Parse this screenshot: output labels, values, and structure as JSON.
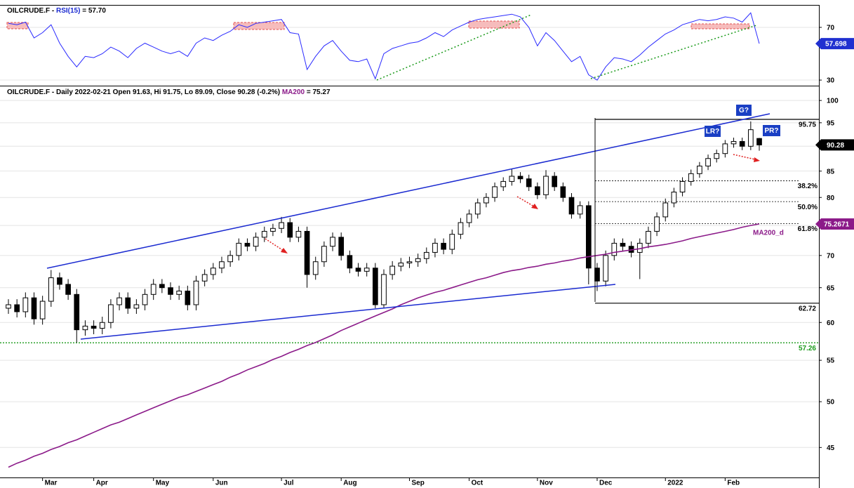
{
  "chart_data": [
    {
      "type": "candlestick",
      "title_parts": [
        "OILCRUDE.F - Daily 2022-02-21 Open 91.63, Hi 91.75, Lo 89.09, Close 90.28 (-0.2%) ",
        "MA200",
        " = 75.27"
      ],
      "categories": [
        null,
        null,
        null,
        null,
        "Mar",
        null,
        null,
        null,
        null,
        null,
        "Apr",
        null,
        null,
        null,
        null,
        null,
        null,
        "May",
        null,
        null,
        null,
        null,
        null,
        null,
        "Jun",
        null,
        null,
        null,
        null,
        null,
        null,
        null,
        "Jul",
        null,
        null,
        null,
        null,
        null,
        null,
        "Aug",
        null,
        null,
        null,
        null,
        null,
        null,
        null,
        "Sep",
        null,
        null,
        null,
        null,
        null,
        null,
        "Oct",
        null,
        null,
        null,
        null,
        null,
        null,
        null,
        "Nov",
        null,
        null,
        null,
        null,
        null,
        null,
        "Dec",
        null,
        null,
        null,
        null,
        null,
        null,
        null,
        "2022",
        null,
        null,
        null,
        null,
        null,
        null,
        "Feb",
        null,
        null,
        null,
        null
      ],
      "open": [
        62,
        62.5,
        61.5,
        63.5,
        60.5,
        63,
        66.5,
        65.5,
        64,
        59,
        59.5,
        59.2,
        60,
        62.5,
        63.5,
        62,
        62.5,
        64,
        65.5,
        65,
        64,
        64.5,
        62.5,
        66,
        67,
        68,
        69,
        70,
        72,
        71.5,
        73,
        74,
        74.5,
        75.5,
        73,
        74,
        67,
        69,
        71.5,
        73,
        70,
        68,
        67.5,
        68,
        62.5,
        67,
        68.3,
        68.8,
        69,
        69.5,
        70.5,
        72,
        71,
        73.5,
        75.5,
        77,
        79,
        80,
        82,
        83,
        84,
        83.5,
        82,
        80.5,
        84,
        82,
        80,
        77,
        78.5,
        68,
        66,
        70,
        72,
        71.5,
        70.5,
        72,
        74,
        76.5,
        79,
        81,
        83,
        84.5,
        86,
        87.5,
        88.5,
        90.5,
        91,
        90,
        91.63
      ],
      "high": [
        63.3,
        63.3,
        64.3,
        64.3,
        63.8,
        67.7,
        67.3,
        66.3,
        64.8,
        60.3,
        60.3,
        60.8,
        63.3,
        64.3,
        64.3,
        63.3,
        64.8,
        66.3,
        66.3,
        65.8,
        65.3,
        65.3,
        66.8,
        67.8,
        68.8,
        69.8,
        70.8,
        72.8,
        72.8,
        73.8,
        74.8,
        75.3,
        76.5,
        76.3,
        74.8,
        74.8,
        69.8,
        72.3,
        73.8,
        73.8,
        70.8,
        68.8,
        68.8,
        68.8,
        67.8,
        69.1,
        69.6,
        69.8,
        70.3,
        71.3,
        72.8,
        72.8,
        74.3,
        76.3,
        77.8,
        79.8,
        80.8,
        82.8,
        83.8,
        85.5,
        84.8,
        84.3,
        82.8,
        85.2,
        84.8,
        82.8,
        80.8,
        79.3,
        79.3,
        68.8,
        70.8,
        72.8,
        72.8,
        72.3,
        72.8,
        74.8,
        77.3,
        79.8,
        81.8,
        83.8,
        85.3,
        86.8,
        88.3,
        89.3,
        91.3,
        91.8,
        91.8,
        95.3,
        91.75
      ],
      "low": [
        61.2,
        60.7,
        60.7,
        59.7,
        59.7,
        62.2,
        64.7,
        63.2,
        57.3,
        58.2,
        58.4,
        58.4,
        59.2,
        61.7,
        61.2,
        61.2,
        61.7,
        63.2,
        64.2,
        63.2,
        63.2,
        61.7,
        61.7,
        65.2,
        66.2,
        67.2,
        68.2,
        69.2,
        70.7,
        70.7,
        72.2,
        73.2,
        73.7,
        72.2,
        72.2,
        65,
        66.2,
        68.2,
        70.7,
        69.2,
        67.2,
        66.7,
        66.7,
        62,
        62,
        66.2,
        67.5,
        68,
        68.2,
        68.7,
        69.7,
        70.2,
        70.2,
        72.7,
        74.7,
        76.2,
        78.2,
        79.2,
        81.2,
        82.2,
        82.7,
        81.2,
        79.7,
        79.7,
        81.2,
        79.2,
        76.2,
        76.2,
        65.5,
        64.5,
        65.2,
        69.2,
        70.7,
        69.7,
        66.3,
        71.2,
        73.2,
        75.7,
        78.2,
        80.2,
        82.2,
        83.7,
        85.2,
        86.7,
        87.7,
        89.7,
        89.2,
        89.2,
        89.09
      ],
      "close": [
        62.5,
        61.5,
        63.5,
        60.5,
        63,
        66.5,
        65.5,
        64,
        59,
        59.5,
        59.2,
        60,
        62.5,
        63.5,
        62,
        62.5,
        64,
        65.5,
        65,
        64,
        64.5,
        62.5,
        66,
        67,
        68,
        69,
        70,
        72,
        71.5,
        73,
        74,
        74.5,
        75.5,
        73,
        74,
        67,
        69,
        71.5,
        73,
        70,
        68,
        67.5,
        68,
        62.5,
        67,
        68.3,
        68.8,
        69,
        69.5,
        70.5,
        72,
        71,
        73.5,
        75.5,
        77,
        79,
        80,
        82,
        83,
        84,
        83.5,
        82,
        80.5,
        84,
        82,
        80,
        77,
        78.5,
        68,
        66,
        70,
        72,
        71.5,
        70.5,
        72,
        74,
        76.5,
        79,
        81,
        83,
        84.5,
        86,
        87.5,
        88.5,
        90.5,
        91,
        90,
        93.5,
        90.28
      ],
      "up_color": "#ffffff",
      "down_color": "#000000",
      "series": [
        {
          "name": "MA200_d",
          "color": "#8b1a89",
          "values": [
            43.0,
            43.4,
            43.7,
            44.1,
            44.4,
            44.8,
            45.1,
            45.5,
            45.8,
            46.2,
            46.6,
            47.0,
            47.4,
            47.7,
            48.1,
            48.5,
            48.9,
            49.3,
            49.7,
            50.1,
            50.5,
            50.8,
            51.2,
            51.6,
            52.0,
            52.4,
            52.9,
            53.3,
            53.8,
            54.2,
            54.6,
            55.1,
            55.5,
            56.0,
            56.4,
            56.9,
            57.3,
            57.8,
            58.3,
            58.9,
            59.4,
            59.9,
            60.4,
            60.9,
            61.4,
            61.9,
            62.5,
            63.0,
            63.5,
            63.9,
            64.3,
            64.6,
            65.0,
            65.4,
            65.8,
            66.2,
            66.5,
            66.9,
            67.3,
            67.6,
            67.8,
            68.1,
            68.3,
            68.6,
            68.8,
            69.1,
            69.3,
            69.6,
            69.8,
            70.0,
            70.2,
            70.5,
            70.7,
            70.9,
            71.1,
            71.4,
            71.6,
            71.8,
            72.1,
            72.4,
            72.8,
            73.1,
            73.4,
            73.7,
            74.0,
            74.3,
            74.7,
            75.0,
            75.2671
          ]
        }
      ],
      "levels": [
        95.75,
        62.72
      ],
      "support": 57.26,
      "fib_levels": [
        {
          "ratio": 38.2,
          "label": "38.2%"
        },
        {
          "ratio": 50.0,
          "label": "50.0%"
        },
        {
          "ratio": 61.8,
          "label": "61.8%"
        }
      ],
      "annotations": [
        "G?",
        "LR?",
        "PR?"
      ],
      "log_scale": true,
      "ylim": [
        42.0,
        103.3
      ],
      "yticks": [
        45,
        50,
        55,
        60,
        65,
        70,
        75,
        80,
        85,
        90,
        95,
        100
      ],
      "grid": true
    },
    {
      "type": "line",
      "title_parts": [
        "OILCRUDE.F - ",
        "RSI(15)",
        " = 57.70"
      ],
      "series": [
        {
          "color": "#2a2aff",
          "values": [
            73,
            72,
            74,
            62,
            66,
            72,
            58,
            48,
            40,
            48,
            47,
            50,
            55,
            52,
            47,
            54,
            58,
            55,
            52,
            50,
            52,
            48,
            58,
            62,
            60,
            64,
            67,
            72,
            70,
            73,
            74,
            75,
            76,
            66,
            65,
            38,
            48,
            56,
            60,
            52,
            45,
            44,
            46,
            31,
            50,
            54,
            56,
            58,
            59,
            62,
            66,
            63,
            68,
            71,
            74,
            76,
            77,
            78,
            79,
            80,
            78,
            70,
            56,
            66,
            60,
            52,
            44,
            48,
            34,
            30,
            40,
            47,
            46,
            44,
            49,
            55,
            60,
            65,
            68,
            72,
            74,
            76,
            75,
            76,
            78,
            77,
            74,
            81,
            57.698
          ]
        }
      ],
      "ylim": [
        26.3,
        86.5
      ],
      "yticks": [
        30,
        70
      ],
      "grid": true
    }
  ]
}
